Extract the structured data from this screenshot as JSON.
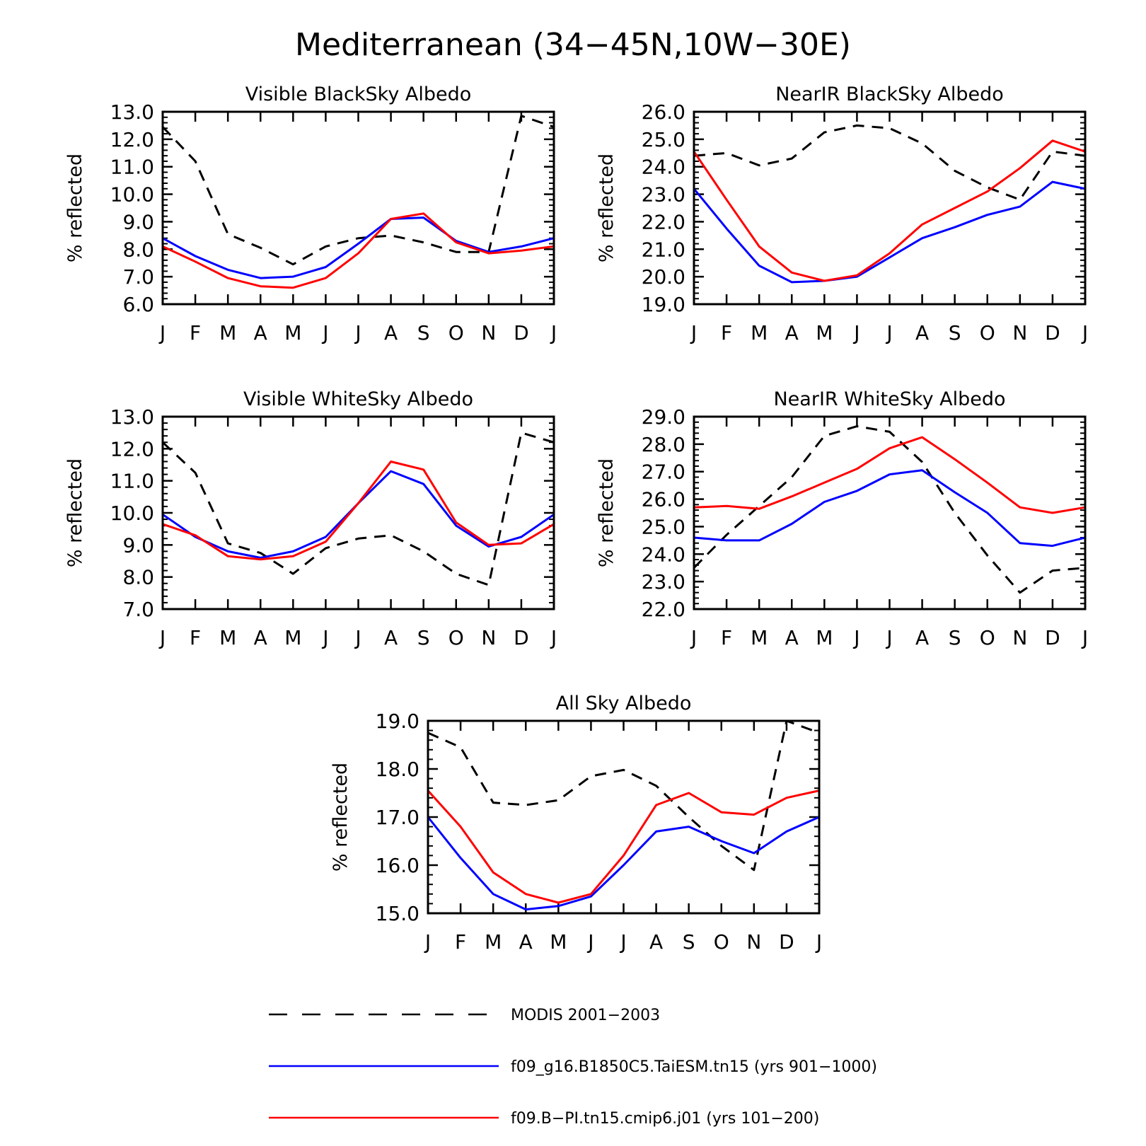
{
  "figure": {
    "title": "Mediterranean (34−45N,10W−30E)"
  },
  "legend": {
    "placement": "bottom",
    "entries": [
      {
        "label": "MODIS 2001−2003",
        "color": "#000000",
        "style": "dashed"
      },
      {
        "label": "f09_g16.B1850C5.TaiESM.tn15 (yrs 901−1000)",
        "color": "#0000ff",
        "style": "solid"
      },
      {
        "label": "f09.B−PI.tn15.cmip6.j01 (yrs 101−200)",
        "color": "#ff0000",
        "style": "solid"
      }
    ]
  },
  "chart_data": [
    {
      "type": "line",
      "title": "Visible BlackSky Albedo",
      "ylabel": "% reflected",
      "ylim": [
        6.0,
        13.0
      ],
      "yticks": [
        "6.0",
        "7.0",
        "8.0",
        "9.0",
        "10.0",
        "11.0",
        "12.0",
        "13.0"
      ],
      "categories": [
        "J",
        "F",
        "M",
        "A",
        "M",
        "J",
        "J",
        "A",
        "S",
        "O",
        "N",
        "D",
        "J"
      ],
      "series": [
        {
          "color": "#000000",
          "style": "dashed",
          "values": [
            12.45,
            11.2,
            8.55,
            8.05,
            7.45,
            8.1,
            8.4,
            8.5,
            8.25,
            7.9,
            7.9,
            12.85,
            12.45
          ]
        },
        {
          "color": "#0000ff",
          "style": "solid",
          "values": [
            8.4,
            7.75,
            7.25,
            6.95,
            7.0,
            7.35,
            8.2,
            9.1,
            9.15,
            8.3,
            7.9,
            8.1,
            8.4
          ]
        },
        {
          "color": "#ff0000",
          "style": "solid",
          "values": [
            8.1,
            7.55,
            6.95,
            6.65,
            6.6,
            6.95,
            7.85,
            9.1,
            9.3,
            8.25,
            7.85,
            7.95,
            8.1
          ]
        }
      ]
    },
    {
      "type": "line",
      "title": "NearIR BlackSky Albedo",
      "ylabel": "% reflected",
      "ylim": [
        19.0,
        26.0
      ],
      "yticks": [
        "19.0",
        "20.0",
        "21.0",
        "22.0",
        "23.0",
        "24.0",
        "25.0",
        "26.0"
      ],
      "categories": [
        "J",
        "F",
        "M",
        "A",
        "M",
        "J",
        "J",
        "A",
        "S",
        "O",
        "N",
        "D",
        "J"
      ],
      "series": [
        {
          "color": "#000000",
          "style": "dashed",
          "values": [
            24.4,
            24.5,
            24.05,
            24.3,
            25.25,
            25.5,
            25.4,
            24.85,
            23.85,
            23.25,
            22.8,
            24.55,
            24.4
          ]
        },
        {
          "color": "#0000ff",
          "style": "solid",
          "values": [
            23.2,
            21.75,
            20.4,
            19.8,
            19.85,
            20.0,
            20.7,
            21.4,
            21.8,
            22.25,
            22.55,
            23.45,
            23.2
          ]
        },
        {
          "color": "#ff0000",
          "style": "solid",
          "values": [
            24.55,
            22.8,
            21.1,
            20.15,
            19.85,
            20.05,
            20.85,
            21.9,
            22.5,
            23.1,
            23.95,
            24.95,
            24.55
          ]
        }
      ]
    },
    {
      "type": "line",
      "title": "Visible WhiteSky Albedo",
      "ylabel": "% reflected",
      "ylim": [
        7.0,
        13.0
      ],
      "yticks": [
        "7.0",
        "8.0",
        "9.0",
        "10.0",
        "11.0",
        "12.0",
        "13.0"
      ],
      "categories": [
        "J",
        "F",
        "M",
        "A",
        "M",
        "J",
        "J",
        "A",
        "S",
        "O",
        "N",
        "D",
        "J"
      ],
      "series": [
        {
          "color": "#000000",
          "style": "dashed",
          "values": [
            12.2,
            11.25,
            9.05,
            8.75,
            8.1,
            8.9,
            9.2,
            9.3,
            8.8,
            8.1,
            7.75,
            12.5,
            12.2
          ]
        },
        {
          "color": "#0000ff",
          "style": "solid",
          "values": [
            9.95,
            9.25,
            8.8,
            8.6,
            8.8,
            9.25,
            10.3,
            11.3,
            10.9,
            9.6,
            8.95,
            9.25,
            9.95
          ]
        },
        {
          "color": "#ff0000",
          "style": "solid",
          "values": [
            9.65,
            9.3,
            8.65,
            8.55,
            8.65,
            9.1,
            10.3,
            11.6,
            11.35,
            9.7,
            9.0,
            9.05,
            9.65
          ]
        }
      ]
    },
    {
      "type": "line",
      "title": "NearIR WhiteSky Albedo",
      "ylabel": "% reflected",
      "ylim": [
        22.0,
        29.0
      ],
      "yticks": [
        "22.0",
        "23.0",
        "24.0",
        "25.0",
        "26.0",
        "27.0",
        "28.0",
        "29.0"
      ],
      "categories": [
        "J",
        "F",
        "M",
        "A",
        "M",
        "J",
        "J",
        "A",
        "S",
        "O",
        "N",
        "D",
        "J"
      ],
      "series": [
        {
          "color": "#000000",
          "style": "dashed",
          "values": [
            23.5,
            24.7,
            25.75,
            26.8,
            28.3,
            28.65,
            28.45,
            27.35,
            25.5,
            23.95,
            22.6,
            23.4,
            23.5
          ]
        },
        {
          "color": "#0000ff",
          "style": "solid",
          "values": [
            24.6,
            24.5,
            24.5,
            25.1,
            25.9,
            26.3,
            26.9,
            27.05,
            26.25,
            25.5,
            24.4,
            24.3,
            24.6
          ]
        },
        {
          "color": "#ff0000",
          "style": "solid",
          "values": [
            25.7,
            25.75,
            25.65,
            26.1,
            26.6,
            27.1,
            27.85,
            28.25,
            27.45,
            26.6,
            25.7,
            25.5,
            25.7
          ]
        }
      ]
    },
    {
      "type": "line",
      "title": "All Sky Albedo",
      "ylabel": "% reflected",
      "ylim": [
        15.0,
        19.0
      ],
      "yticks": [
        "15.0",
        "16.0",
        "17.0",
        "18.0",
        "19.0"
      ],
      "categories": [
        "J",
        "F",
        "M",
        "A",
        "M",
        "J",
        "J",
        "A",
        "S",
        "O",
        "N",
        "D",
        "J"
      ],
      "series": [
        {
          "color": "#000000",
          "style": "dashed",
          "values": [
            18.75,
            18.45,
            17.3,
            17.25,
            17.35,
            17.85,
            17.98,
            17.65,
            17.0,
            16.4,
            15.9,
            19.0,
            18.75
          ]
        },
        {
          "color": "#0000ff",
          "style": "solid",
          "values": [
            17.0,
            16.15,
            15.4,
            15.08,
            15.15,
            15.35,
            16.0,
            16.7,
            16.8,
            16.5,
            16.25,
            16.7,
            17.0
          ]
        },
        {
          "color": "#ff0000",
          "style": "solid",
          "values": [
            17.55,
            16.8,
            15.85,
            15.4,
            15.22,
            15.4,
            16.2,
            17.25,
            17.5,
            17.1,
            17.05,
            17.4,
            17.55
          ]
        }
      ]
    }
  ]
}
